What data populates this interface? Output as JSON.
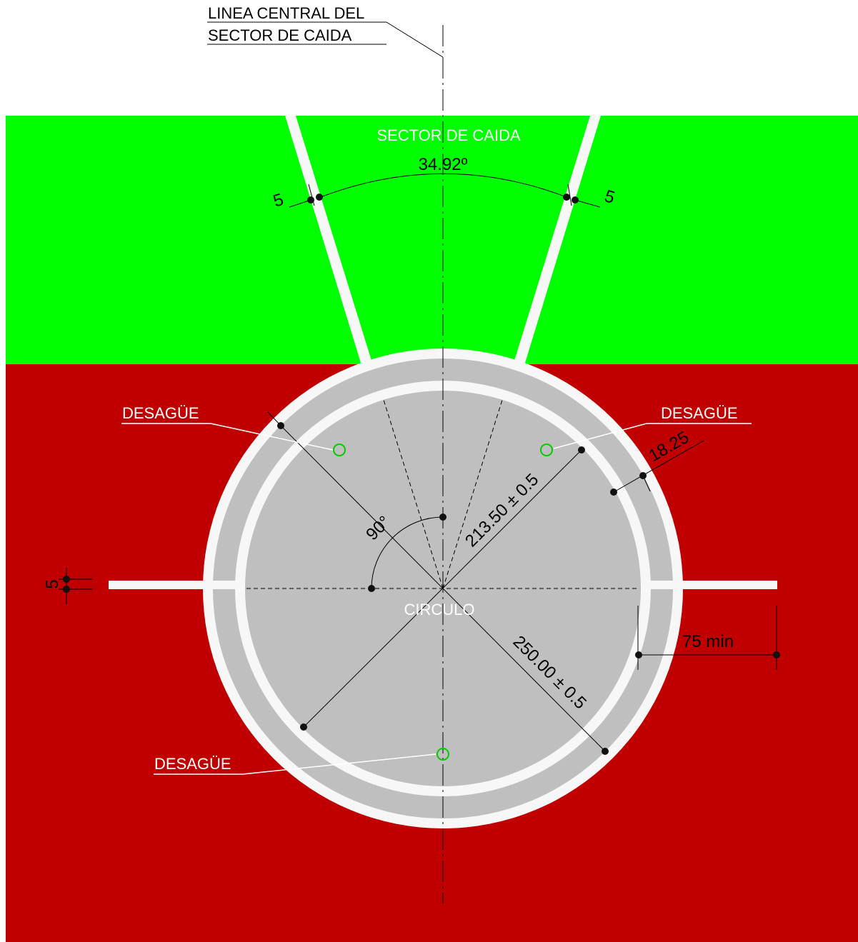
{
  "title": {
    "line1": "LINEA CENTRAL DEL",
    "line2": "SECTOR DE CAIDA"
  },
  "zones": {
    "landing_sector_label": "SECTOR DE CAIDA",
    "circle_label": "CIRCULO"
  },
  "drain_labels": [
    "DESAGÜE",
    "DESAGÜE",
    "DESAGÜE"
  ],
  "dimensions": {
    "sector_angle": "34.92º",
    "line_width_left": "5",
    "line_width_right": "5",
    "inner_diameter": "213.50 ± 0.5",
    "outer_diameter": "250.00 ± 0.5",
    "ring_width": "18.25",
    "right_angle": "90°",
    "line_width_side": "5",
    "extension_min": "75 min"
  },
  "colors": {
    "landing_area": "#00ff00",
    "surrounding_area": "#c00000",
    "circle_fill": "#bfbfbf",
    "lines": "#f7f7f7",
    "drain": "#00cc00"
  }
}
